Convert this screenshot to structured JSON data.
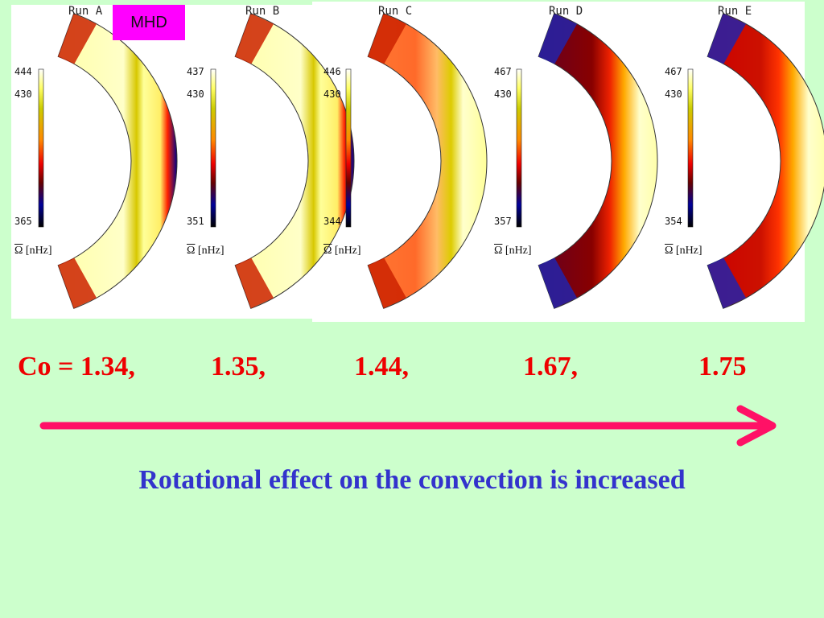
{
  "tag": "MHD",
  "runs": [
    {
      "title": "Run A",
      "ticks": [
        "444",
        "430",
        "365"
      ],
      "unit": "[nHz]",
      "symbol": "Ω",
      "scheme": "yellow"
    },
    {
      "title": "Run B",
      "ticks": [
        "437",
        "430",
        "351"
      ],
      "unit": "[nHz]",
      "symbol": "Ω",
      "scheme": "yellow"
    },
    {
      "title": "Run C",
      "ticks": [
        "446",
        "430",
        "344"
      ],
      "unit": "[nHz]",
      "symbol": "Ω",
      "scheme": "orange"
    },
    {
      "title": "Run D",
      "ticks": [
        "467",
        "430",
        "357"
      ],
      "unit": "[nHz]",
      "symbol": "Ω",
      "scheme": "darkred"
    },
    {
      "title": "Run E",
      "ticks": [
        "467",
        "430",
        "354"
      ],
      "unit": "[nHz]",
      "symbol": "Ω",
      "scheme": "red"
    }
  ],
  "co_values": {
    "prefix": "Co = 1.34,",
    "v2": "1.35,",
    "v3": "1.44,",
    "v4": "1.67,",
    "v5": "1.75"
  },
  "caption": "Rotational effect on the convection is increased",
  "colors": {
    "background": "#ccffcc",
    "co_text": "#ee0000",
    "caption": "#3333cc",
    "arrow": "#ff1166",
    "tag": "#ff00ff"
  }
}
